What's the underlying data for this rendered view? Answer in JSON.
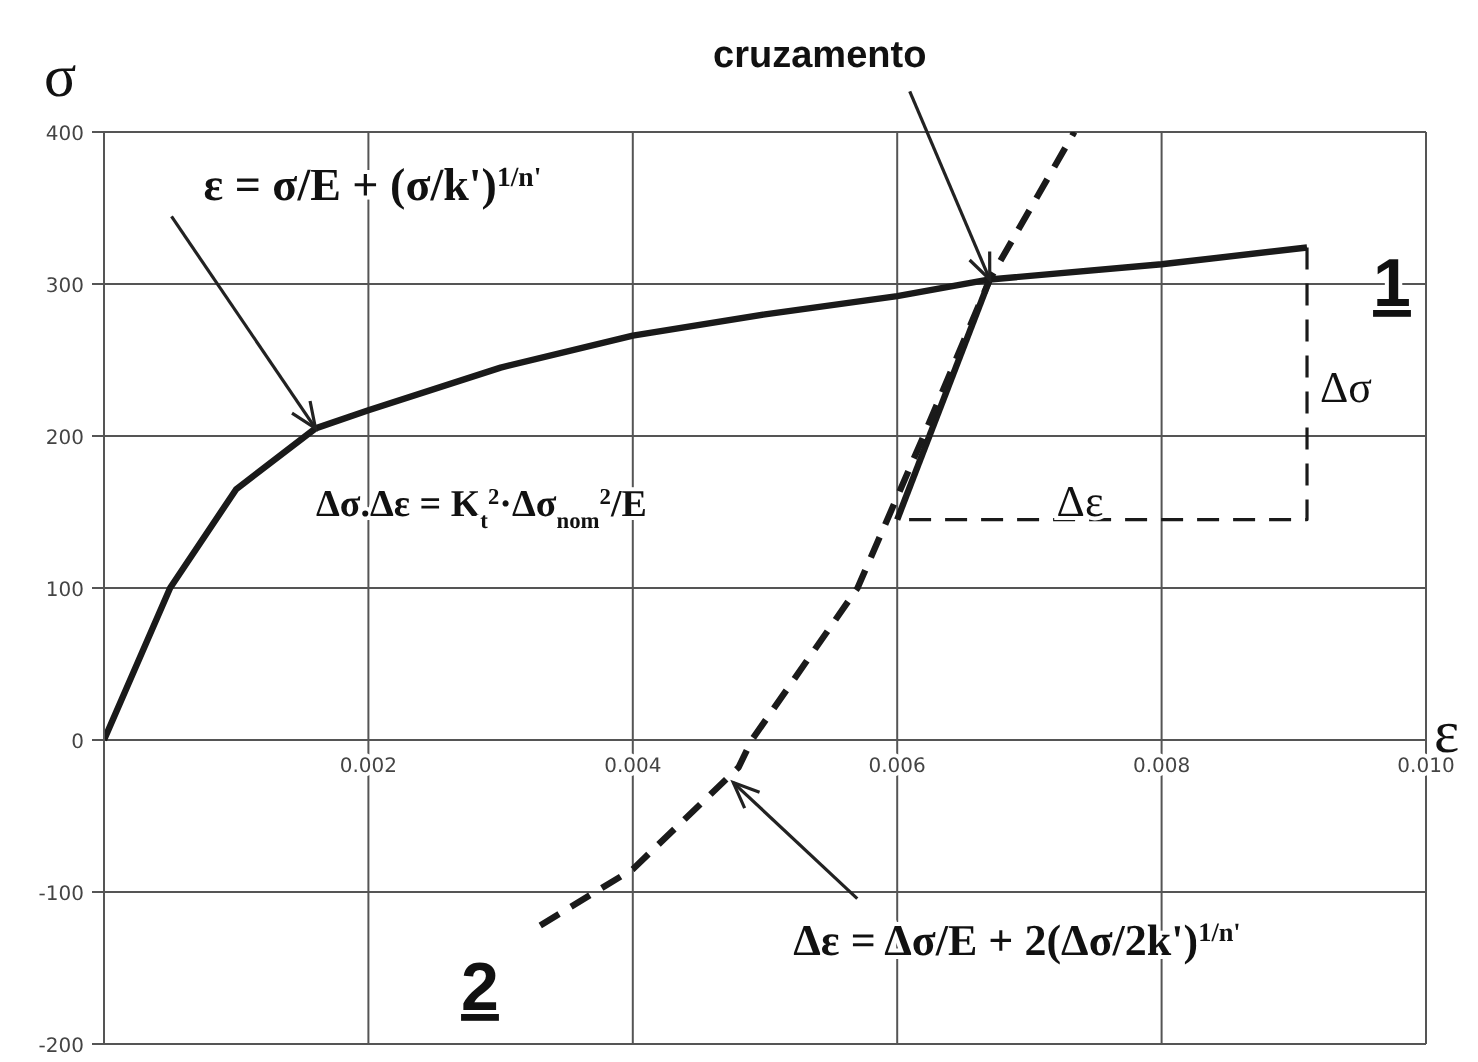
{
  "chart_data": {
    "type": "line",
    "xlabel": "ε",
    "ylabel": "σ",
    "xlim": [
      0,
      0.01
    ],
    "ylim": [
      -200,
      400
    ],
    "xticks": [
      {
        "value": 0,
        "label": null
      },
      0.002,
      0.004,
      0.006,
      0.008,
      {
        "value": 0.01,
        "label": "0.010"
      }
    ],
    "yticks": [
      -200,
      -100,
      0,
      100,
      200,
      300,
      400
    ],
    "grid": true,
    "marker": "none",
    "series": [
      {
        "color": "#1a1a1a",
        "line_style": "solid",
        "x": [
          0,
          0.0005,
          0.001,
          0.0016,
          0.002,
          0.003,
          0.004,
          0.005,
          0.006,
          0.0067,
          0.008,
          0.0091
        ],
        "values": [
          0,
          100,
          165,
          205,
          217,
          245,
          266,
          280,
          292,
          303,
          313,
          324
        ]
      },
      {
        "color": "#1a1a1a",
        "line_style": "dashed",
        "x": [
          0.0091,
          0.0091,
          0.006
        ],
        "values": [
          324,
          145,
          145
        ]
      },
      {
        "color": "#1a1a1a",
        "line_style": "solid",
        "x": [
          0.006,
          0.0067
        ],
        "values": [
          145,
          303
        ]
      },
      {
        "color": "#1a1a1a",
        "line_style": "dashed",
        "x": [
          0.0033,
          0.004,
          0.0048,
          0.0049,
          0.0057,
          0.0062,
          0.0067,
          0.00734
        ],
        "values": [
          -122,
          -85,
          -18,
          0,
          100,
          200,
          303,
          400
        ]
      }
    ],
    "annotations": [
      {
        "text": "cruzamento",
        "x": 0.0067,
        "y": 303
      },
      {
        "text": "ε = σ/E + (σ/k')$^{1/n'}$",
        "x": 0.0016,
        "y": 205
      },
      "Δσ.Δε = K$_{t}$$^{2}$·Δσ$_{nom}$$^{2}$/E",
      "Δσ",
      "Δε",
      {
        "text": "Δε = Δσ/E + 2(Δσ/2k')$^{1/n'}$",
        "x": 0.00476,
        "y": -28
      },
      "1",
      "2"
    ]
  }
}
